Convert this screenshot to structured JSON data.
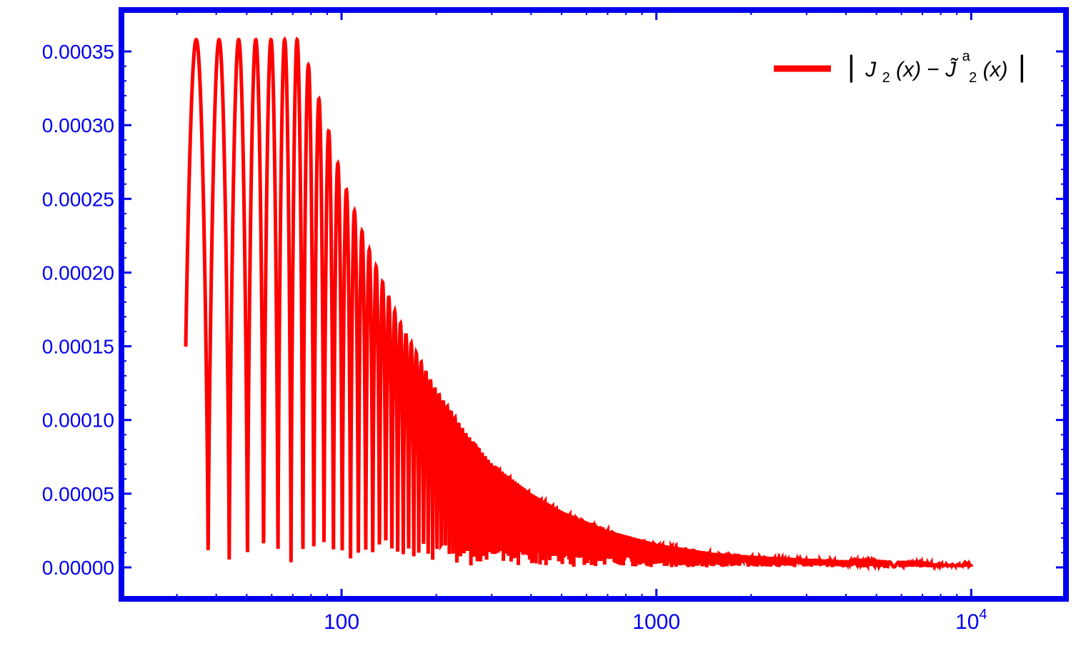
{
  "chart_data": {
    "type": "line",
    "title": "",
    "xlabel": "",
    "ylabel": "",
    "x_scale": "log",
    "xlim": [
      20,
      20000
    ],
    "ylim": [
      0,
      0.000358
    ],
    "y_ticks": [
      "0.00000",
      "0.00005",
      "0.00010",
      "0.00015",
      "0.00020",
      "0.00025",
      "0.00030",
      "0.00035"
    ],
    "y_tick_values": [
      0,
      5e-05,
      0.0001,
      0.00015,
      0.0002,
      0.00025,
      0.0003,
      0.00035
    ],
    "x_ticks": [
      {
        "value": 100,
        "label": "100"
      },
      {
        "value": 1000,
        "label": "1000"
      },
      {
        "value": 10000,
        "label": "10",
        "sup": "4"
      }
    ],
    "legend_position": "top-right",
    "grid": false,
    "colors": {
      "axis": "#0000ee",
      "series": "#ff0000"
    },
    "series": [
      {
        "legend": {
          "abs_open": "|",
          "j": "J",
          "sub1": "2",
          "arg1": "(x)",
          "minus": "−",
          "j_tilde": "J̃",
          "sup_a": "a",
          "sub2": "2",
          "arg2": "(x)",
          "abs_close": "|"
        },
        "x_range": [
          32,
          10000
        ],
        "clip_max": 0.000358,
        "envelope": [
          [
            32,
            0.000358
          ],
          [
            74,
            0.000358
          ],
          [
            80,
            0.000335
          ],
          [
            90,
            0.0003
          ],
          [
            100,
            0.000265
          ],
          [
            120,
            0.00022
          ],
          [
            150,
            0.00017
          ],
          [
            200,
            0.00012
          ],
          [
            250,
            9e-05
          ],
          [
            300,
            7e-05
          ],
          [
            400,
            5e-05
          ],
          [
            500,
            3.8e-05
          ],
          [
            700,
            2.5e-05
          ],
          [
            1000,
            1.6e-05
          ],
          [
            1500,
            1e-05
          ],
          [
            2000,
            8e-06
          ],
          [
            3000,
            6e-06
          ],
          [
            5000,
            4e-06
          ],
          [
            7000,
            3e-06
          ],
          [
            10000,
            2e-06
          ]
        ]
      }
    ]
  }
}
